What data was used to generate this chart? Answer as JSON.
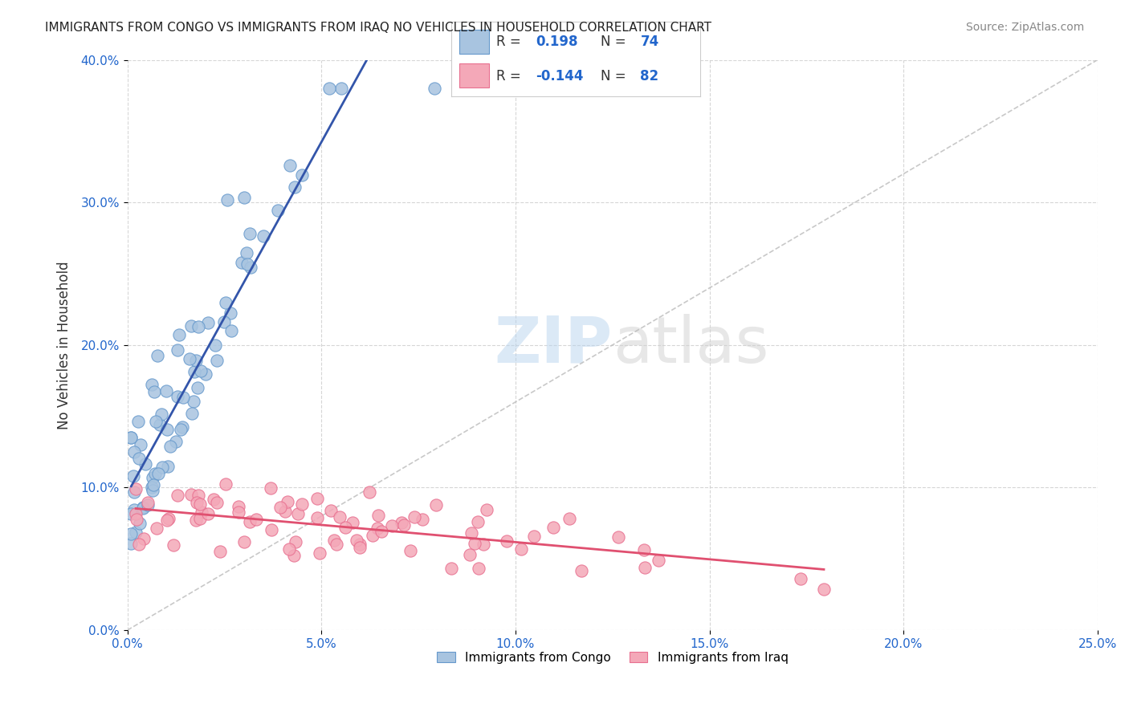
{
  "title": "IMMIGRANTS FROM CONGO VS IMMIGRANTS FROM IRAQ NO VEHICLES IN HOUSEHOLD CORRELATION CHART",
  "source": "Source: ZipAtlas.com",
  "ylabel": "No Vehicles in Household",
  "xlim": [
    0.0,
    0.25
  ],
  "ylim": [
    0.0,
    0.4
  ],
  "xticks": [
    0.0,
    0.05,
    0.1,
    0.15,
    0.2,
    0.25
  ],
  "yticks": [
    0.0,
    0.1,
    0.2,
    0.3,
    0.4
  ],
  "xtick_labels": [
    "0.0%",
    "5.0%",
    "10.0%",
    "15.0%",
    "20.0%",
    "25.0%"
  ],
  "ytick_labels": [
    "0.0%",
    "10.0%",
    "20.0%",
    "30.0%",
    "40.0%"
  ],
  "congo_color": "#a8c4e0",
  "iraq_color": "#f4a8b8",
  "congo_edge": "#6699cc",
  "iraq_edge": "#e87090",
  "trendline_congo_color": "#3355aa",
  "trendline_iraq_color": "#e05070",
  "r_congo": 0.198,
  "n_congo": 74,
  "r_iraq": -0.144,
  "n_iraq": 82,
  "legend_label_congo": "Immigrants from Congo",
  "legend_label_iraq": "Immigrants from Iraq",
  "watermark_zip": "ZIP",
  "watermark_atlas": "atlas"
}
